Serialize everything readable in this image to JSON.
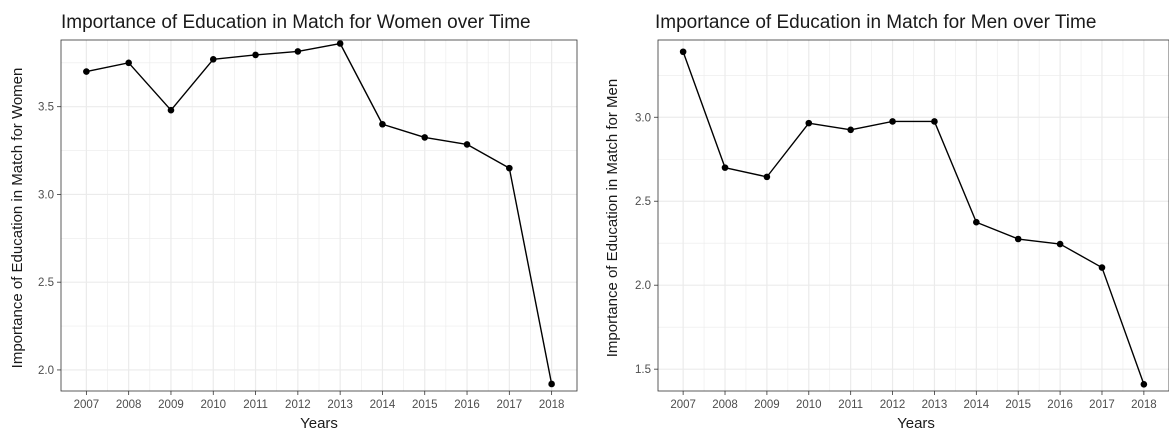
{
  "chart_data": [
    {
      "type": "line",
      "title": "Importance of Education in Match for Women over Time",
      "xlabel": "Years",
      "ylabel": "Importance of Education in Match for Women",
      "x": [
        "2007",
        "2008",
        "2009",
        "2010",
        "2011",
        "2012",
        "2013",
        "2014",
        "2015",
        "2016",
        "2017",
        "2018"
      ],
      "series": [
        {
          "values": [
            3.7,
            3.75,
            3.48,
            3.77,
            3.795,
            3.815,
            3.86,
            3.4,
            3.325,
            3.285,
            3.15,
            1.92
          ]
        }
      ],
      "ylim": [
        1.88,
        3.88
      ],
      "y_ticks": [
        "2.0",
        "2.5",
        "3.0",
        "3.5"
      ],
      "grid": true,
      "line_color": "#000000",
      "grid_color": "#ebebeb",
      "panel_border_color": "#333333"
    },
    {
      "type": "line",
      "title": "Importance of Education in Match for Men over Time",
      "xlabel": "Years",
      "ylabel": "Importance of Education in Match for Men",
      "x": [
        "2007",
        "2008",
        "2009",
        "2010",
        "2011",
        "2012",
        "2013",
        "2014",
        "2015",
        "2016",
        "2017",
        "2018"
      ],
      "series": [
        {
          "values": [
            3.39,
            2.7,
            2.645,
            2.965,
            2.925,
            2.975,
            2.975,
            2.375,
            2.275,
            2.245,
            2.105,
            1.41
          ]
        }
      ],
      "ylim": [
        1.37,
        3.46
      ],
      "y_ticks": [
        "1.5",
        "2.0",
        "2.5",
        "3.0"
      ],
      "grid": true,
      "line_color": "#000000",
      "grid_color": "#ebebeb",
      "panel_border_color": "#333333"
    }
  ]
}
